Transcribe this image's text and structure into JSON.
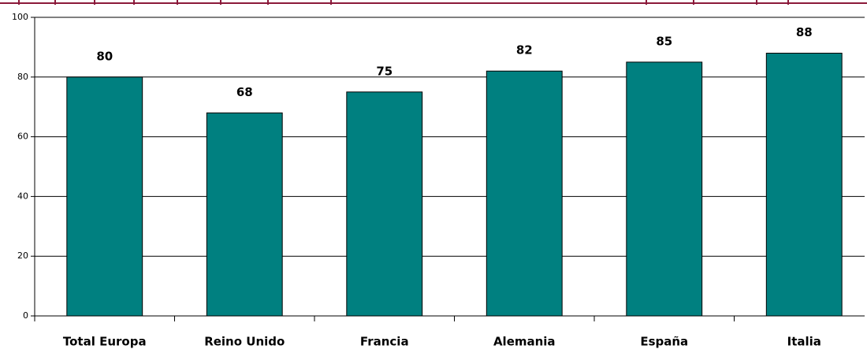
{
  "chart_data": {
    "type": "bar",
    "categories": [
      "Total Europa",
      "Reino Unido",
      "Francia",
      "Alemania",
      "España",
      "Italia"
    ],
    "values": [
      80,
      68,
      75,
      82,
      85,
      88
    ],
    "color": "#008080",
    "ylim": [
      0,
      100
    ],
    "yticks": [
      0,
      20,
      40,
      60,
      80,
      100
    ],
    "grid": true
  }
}
